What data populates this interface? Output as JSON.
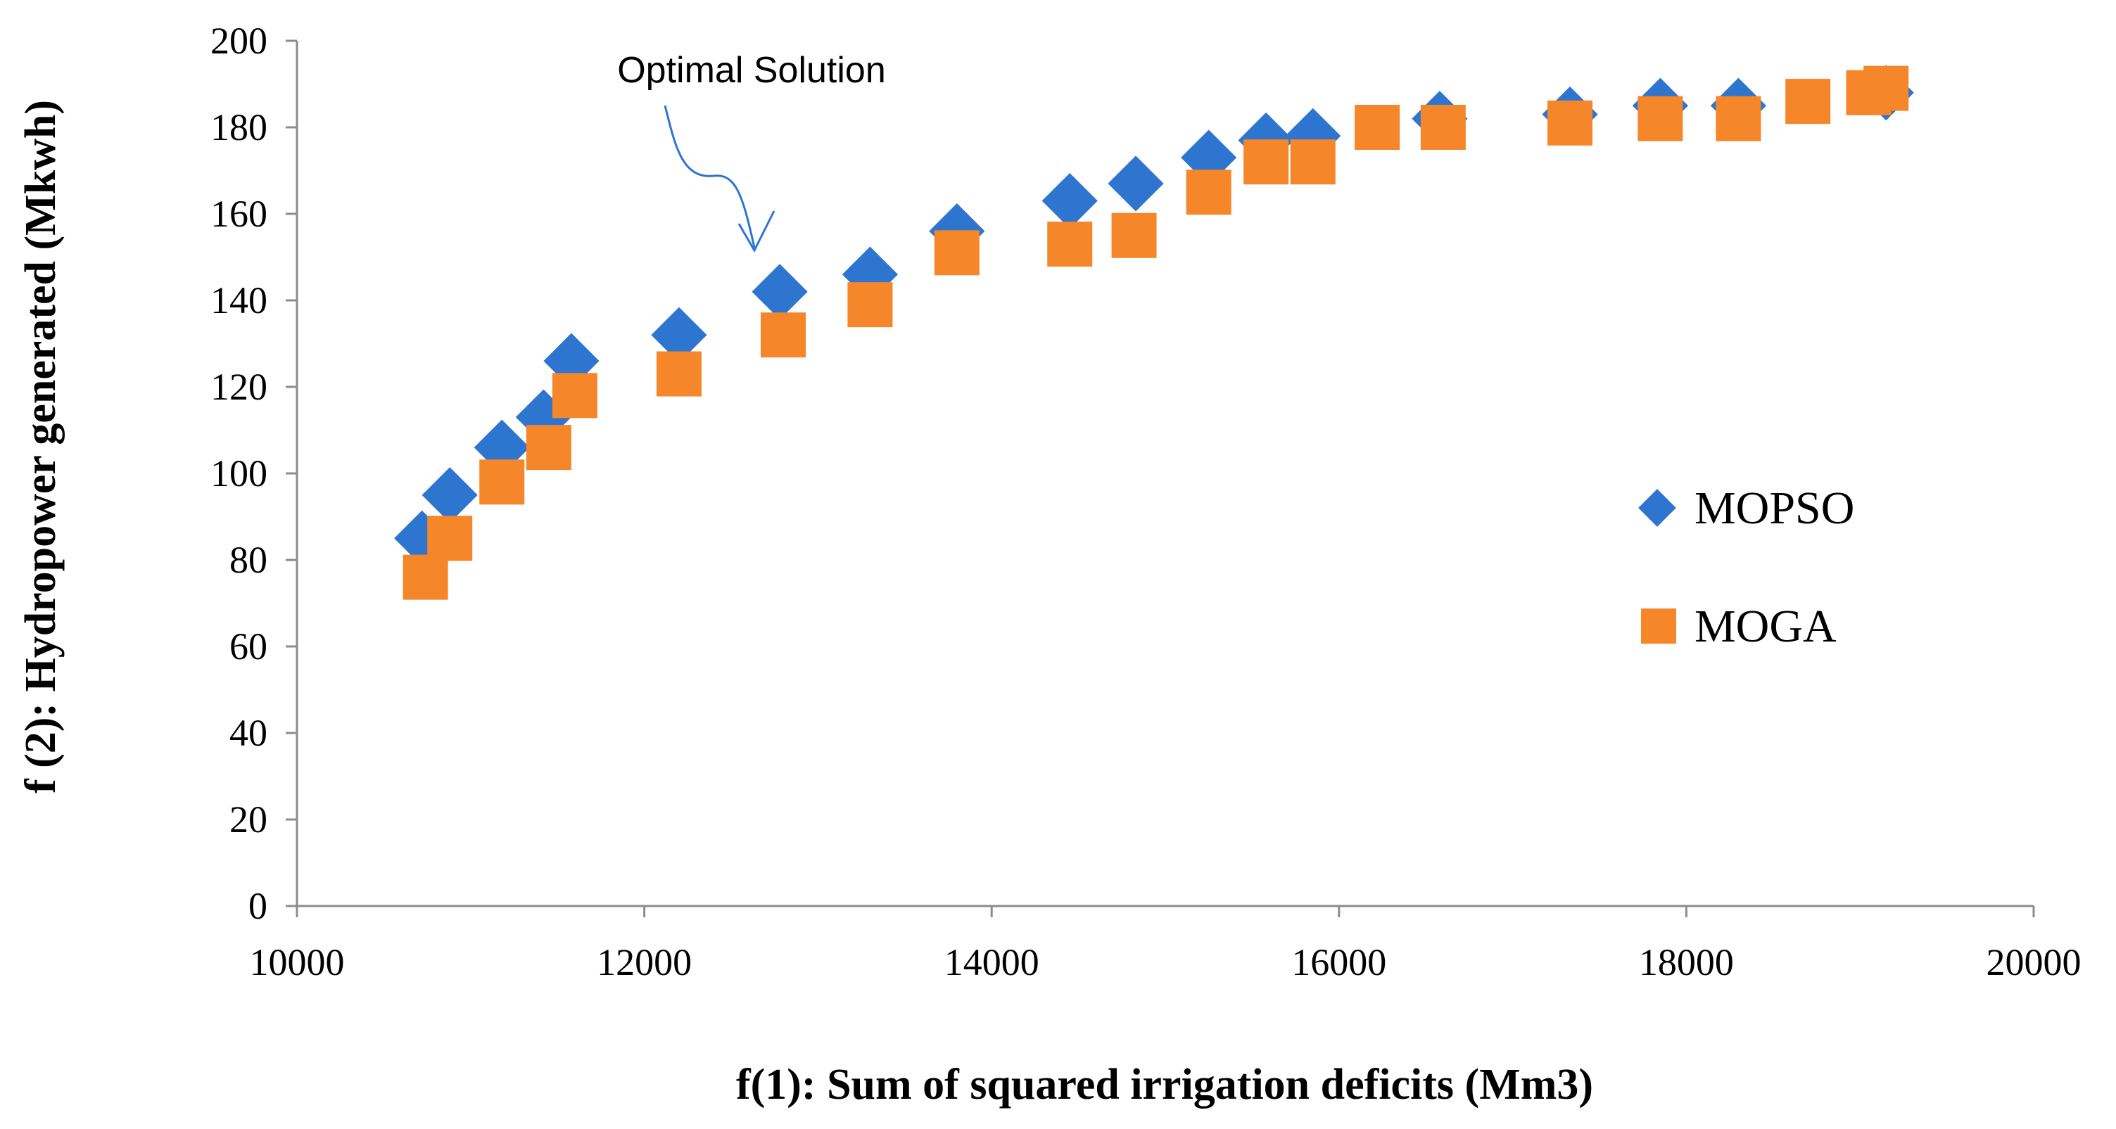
{
  "chart_data": {
    "type": "scatter",
    "title": "",
    "xlabel": "f(1): Sum of squared irrigation deficits (Mm3)",
    "ylabel": "f (2): Hydropower generated (Mkwh)",
    "xlim": [
      10000,
      20000
    ],
    "ylim": [
      0,
      200
    ],
    "xticks": [
      10000,
      12000,
      14000,
      16000,
      18000,
      20000
    ],
    "yticks": [
      0,
      20,
      40,
      60,
      80,
      100,
      120,
      140,
      160,
      180,
      200
    ],
    "grid": false,
    "legend_position": "right",
    "annotation": {
      "text": "Optimal Solution",
      "x": 12700,
      "y": 150
    },
    "series": [
      {
        "name": "MOPSO",
        "marker": "diamond",
        "color": "#2e75d0",
        "points": [
          [
            10720,
            85
          ],
          [
            10880,
            95
          ],
          [
            11180,
            106
          ],
          [
            11420,
            113
          ],
          [
            11580,
            126
          ],
          [
            12200,
            132
          ],
          [
            12780,
            142
          ],
          [
            13300,
            146
          ],
          [
            13800,
            156
          ],
          [
            14450,
            163
          ],
          [
            14830,
            167
          ],
          [
            15250,
            173
          ],
          [
            15580,
            177
          ],
          [
            15850,
            178
          ],
          [
            16580,
            182
          ],
          [
            17330,
            183
          ],
          [
            17850,
            185
          ],
          [
            18300,
            185
          ],
          [
            19150,
            188
          ]
        ]
      },
      {
        "name": "MOGA",
        "marker": "square",
        "color": "#f5862a",
        "points": [
          [
            10740,
            76
          ],
          [
            10880,
            85
          ],
          [
            11180,
            98
          ],
          [
            11450,
            106
          ],
          [
            11600,
            118
          ],
          [
            12200,
            123
          ],
          [
            12800,
            132
          ],
          [
            13300,
            139
          ],
          [
            13800,
            151
          ],
          [
            14450,
            153
          ],
          [
            14820,
            155
          ],
          [
            15250,
            165
          ],
          [
            15580,
            172
          ],
          [
            15850,
            172
          ],
          [
            16220,
            180
          ],
          [
            16600,
            180
          ],
          [
            17330,
            181
          ],
          [
            17850,
            182
          ],
          [
            18300,
            182
          ],
          [
            18700,
            186
          ],
          [
            19050,
            188
          ],
          [
            19150,
            189
          ]
        ]
      }
    ]
  }
}
